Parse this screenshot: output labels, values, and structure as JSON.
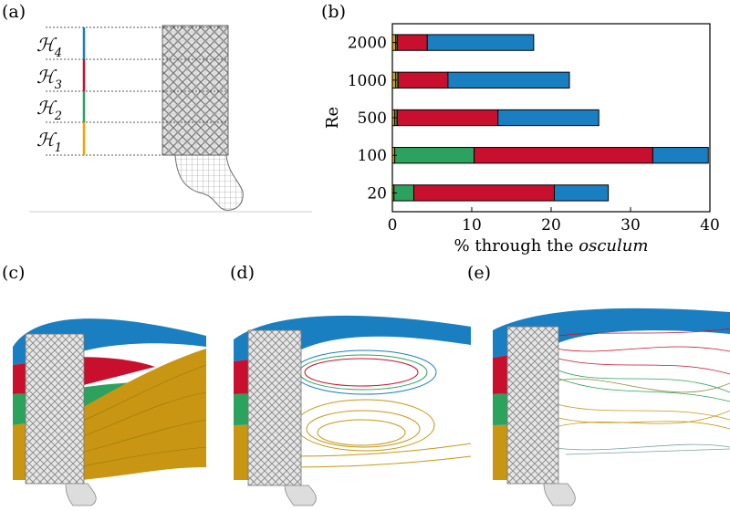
{
  "panels": {
    "a": "(a)",
    "b": "(b)",
    "c": "(c)",
    "d": "(d)",
    "e": "(e)"
  },
  "region_labels": [
    {
      "letter": "ℋ",
      "sub": "4",
      "color": "#1f77b4"
    },
    {
      "letter": "ℋ",
      "sub": "3",
      "color": "#c8102e"
    },
    {
      "letter": "ℋ",
      "sub": "2",
      "color": "#2ca25f"
    },
    {
      "letter": "ℋ",
      "sub": "1",
      "color": "#f0a500"
    }
  ],
  "colors": {
    "H1": "#f0a500",
    "H2": "#2ca25f",
    "H3": "#c8102e",
    "H4": "#1a7fc1",
    "mesh": "#9a9a9a"
  },
  "chart_data": {
    "type": "bar",
    "orientation": "horizontal",
    "stacked": true,
    "categories": [
      "2000",
      "1000",
      "500",
      "100",
      "20"
    ],
    "series": [
      {
        "key": "H1",
        "values": [
          0.4,
          0.4,
          0.3,
          0.3,
          0.2
        ]
      },
      {
        "key": "H2",
        "values": [
          0.2,
          0.3,
          0.3,
          10.0,
          2.5
        ]
      },
      {
        "key": "H3",
        "values": [
          3.8,
          6.3,
          12.7,
          22.5,
          17.7
        ]
      },
      {
        "key": "H4",
        "values": [
          13.4,
          15.3,
          12.7,
          7.0,
          6.8
        ]
      }
    ],
    "xlabel_prefix": "% through the ",
    "xlabel_italic": "osculum",
    "ylabel": "Re",
    "xlim": [
      0,
      40
    ],
    "xticks": [
      "0",
      "10",
      "20",
      "30",
      "40"
    ],
    "grid": false
  }
}
